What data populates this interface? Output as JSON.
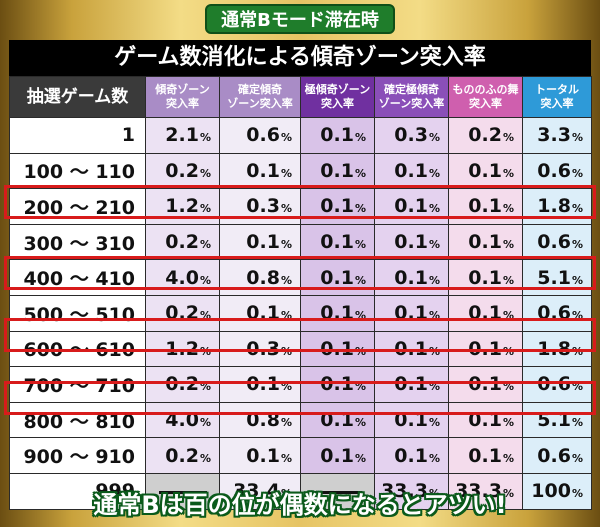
{
  "header": {
    "mode_label": "通常Bモード滞在時",
    "title": "ゲーム数消化による傾奇ゾーン突入率"
  },
  "table": {
    "columns": [
      {
        "line1": "抽選ゲーム数",
        "line2": ""
      },
      {
        "line1": "傾奇ゾーン",
        "line2": "突入率"
      },
      {
        "line1": "確定傾奇",
        "line2": "ゾーン突入率"
      },
      {
        "line1": "極傾奇ゾーン",
        "line2": "突入率"
      },
      {
        "line1": "確定極傾奇",
        "line2": "ゾーン突入率"
      },
      {
        "line1": "もののふの舞",
        "line2": "突入率"
      },
      {
        "line1": "トータル",
        "line2": "突入率"
      }
    ],
    "rows": [
      {
        "label": "1",
        "values": [
          "2.1",
          "0.6",
          "0.1",
          "0.3",
          "0.2",
          "3.3"
        ]
      },
      {
        "label": "100 ～ 110",
        "values": [
          "0.2",
          "0.1",
          "0.1",
          "0.1",
          "0.1",
          "0.6"
        ]
      },
      {
        "label": "200 ～ 210",
        "values": [
          "1.2",
          "0.3",
          "0.1",
          "0.1",
          "0.1",
          "1.8"
        ]
      },
      {
        "label": "300 ～ 310",
        "values": [
          "0.2",
          "0.1",
          "0.1",
          "0.1",
          "0.1",
          "0.6"
        ]
      },
      {
        "label": "400 ～ 410",
        "values": [
          "4.0",
          "0.8",
          "0.1",
          "0.1",
          "0.1",
          "5.1"
        ]
      },
      {
        "label": "500 ～ 510",
        "values": [
          "0.2",
          "0.1",
          "0.1",
          "0.1",
          "0.1",
          "0.6"
        ]
      },
      {
        "label": "600 ～ 610",
        "values": [
          "1.2",
          "0.3",
          "0.1",
          "0.1",
          "0.1",
          "1.8"
        ]
      },
      {
        "label": "700 ～ 710",
        "values": [
          "0.2",
          "0.1",
          "0.1",
          "0.1",
          "0.1",
          "0.6"
        ]
      },
      {
        "label": "800 ～ 810",
        "values": [
          "4.0",
          "0.8",
          "0.1",
          "0.1",
          "0.1",
          "5.1"
        ]
      },
      {
        "label": "900 ～ 910",
        "values": [
          "0.2",
          "0.1",
          "0.1",
          "0.1",
          "0.1",
          "0.6"
        ]
      },
      {
        "label": "999",
        "values": [
          "",
          "33.4",
          "",
          "33.3",
          "33.3",
          "100"
        ]
      }
    ],
    "percent_sign": "%"
  },
  "footer": {
    "text": "通常Bは百の位が偶数になるとアツい!"
  }
}
